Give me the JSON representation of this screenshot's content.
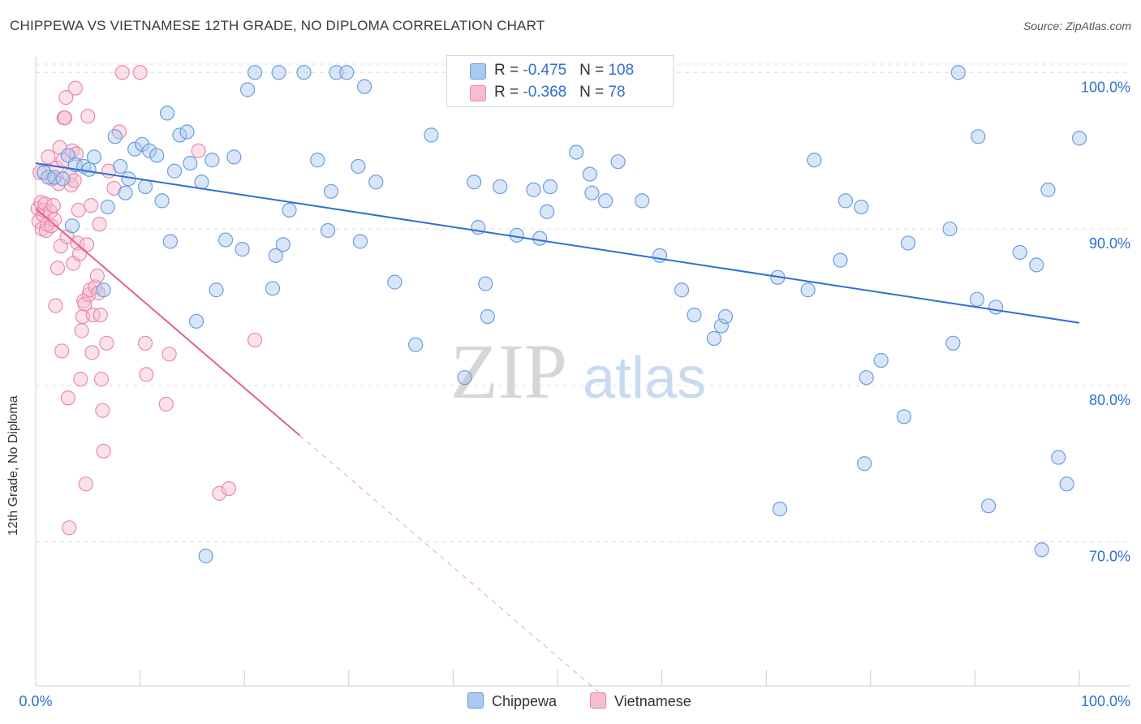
{
  "title": "CHIPPEWA VS VIETNAMESE 12TH GRADE, NO DIPLOMA CORRELATION CHART",
  "source": "Source: ZipAtlas.com",
  "watermark": {
    "zip": "ZIP",
    "atlas": "atlas"
  },
  "legend": {
    "rows": [
      {
        "r_label": "R = ",
        "r_value": "-0.475",
        "n_label": "N = ",
        "n_value": "108"
      },
      {
        "r_label": "R = ",
        "r_value": "-0.368",
        "n_label": "N = ",
        "n_value": "78"
      }
    ]
  },
  "colors": {
    "chippewa_fill": "#aac8f0",
    "chippewa_stroke": "#6b9ee0",
    "chippewa_line": "#2f6fd1",
    "vietnamese_fill": "#f6bcd0",
    "vietnamese_stroke": "#ea8aab",
    "vietnamese_line": "#e0608f",
    "axis_label": "#2f6fd1"
  },
  "chart_data": {
    "type": "scatter",
    "ylabel": "12th Grade, No Diploma",
    "xlim": [
      0,
      100
    ],
    "ylim": [
      60.8,
      101.0
    ],
    "x_tick_labels": [
      "0.0%",
      "100.0%"
    ],
    "y_ticks": [
      {
        "value": 70,
        "label": "70.0%"
      },
      {
        "value": 80,
        "label": "80.0%"
      },
      {
        "value": 90,
        "label": "90.0%"
      },
      {
        "value": 100,
        "label": "100.0%"
      }
    ],
    "grid": "horizontal dashed",
    "series": [
      {
        "name": "Chippewa",
        "trend": {
          "x": [
            0,
            100
          ],
          "y": [
            94.2,
            84.0
          ],
          "dashed_extension": false
        },
        "points": [
          [
            0.8,
            93.6
          ],
          [
            1.2,
            93.3
          ],
          [
            1.8,
            93.3
          ],
          [
            2.6,
            93.2
          ],
          [
            3.1,
            94.7
          ],
          [
            3.5,
            90.2
          ],
          [
            3.8,
            94.1
          ],
          [
            4.6,
            94.0
          ],
          [
            5.1,
            93.8
          ],
          [
            5.6,
            94.6
          ],
          [
            6.5,
            86.1
          ],
          [
            6.9,
            91.4
          ],
          [
            7.6,
            95.9
          ],
          [
            8.1,
            94.0
          ],
          [
            8.6,
            92.3
          ],
          [
            8.9,
            93.2
          ],
          [
            9.5,
            95.1
          ],
          [
            10.2,
            95.4
          ],
          [
            10.5,
            92.7
          ],
          [
            10.9,
            95.0
          ],
          [
            11.6,
            94.7
          ],
          [
            12.1,
            91.8
          ],
          [
            12.6,
            97.4
          ],
          [
            12.9,
            89.2
          ],
          [
            13.3,
            93.7
          ],
          [
            13.8,
            96.0
          ],
          [
            14.5,
            96.2
          ],
          [
            14.8,
            94.2
          ],
          [
            15.4,
            84.1
          ],
          [
            15.9,
            93.0
          ],
          [
            16.3,
            69.1
          ],
          [
            16.9,
            94.4
          ],
          [
            17.3,
            86.1
          ],
          [
            18.2,
            89.3
          ],
          [
            19.0,
            94.6
          ],
          [
            19.8,
            88.7
          ],
          [
            20.3,
            98.9
          ],
          [
            21.0,
            100.0
          ],
          [
            22.7,
            86.2
          ],
          [
            23.0,
            88.3
          ],
          [
            23.3,
            100.0
          ],
          [
            23.7,
            89.0
          ],
          [
            24.3,
            91.2
          ],
          [
            25.7,
            100.0
          ],
          [
            27.0,
            94.4
          ],
          [
            28.0,
            89.9
          ],
          [
            28.3,
            92.4
          ],
          [
            28.8,
            100.0
          ],
          [
            29.8,
            100.0
          ],
          [
            30.9,
            94.0
          ],
          [
            31.1,
            89.2
          ],
          [
            31.5,
            99.1
          ],
          [
            32.6,
            93.0
          ],
          [
            34.4,
            86.6
          ],
          [
            36.4,
            82.6
          ],
          [
            37.9,
            96.0
          ],
          [
            41.1,
            80.5
          ],
          [
            42.0,
            93.0
          ],
          [
            42.4,
            90.1
          ],
          [
            43.1,
            86.5
          ],
          [
            43.3,
            84.4
          ],
          [
            44.5,
            92.7
          ],
          [
            46.1,
            89.6
          ],
          [
            47.7,
            92.5
          ],
          [
            48.3,
            89.4
          ],
          [
            49.0,
            91.1
          ],
          [
            49.3,
            92.7
          ],
          [
            51.8,
            94.9
          ],
          [
            53.1,
            93.5
          ],
          [
            53.3,
            92.3
          ],
          [
            54.6,
            91.8
          ],
          [
            55.8,
            94.3
          ],
          [
            58.1,
            91.8
          ],
          [
            59.8,
            88.3
          ],
          [
            61.9,
            86.1
          ],
          [
            63.1,
            84.5
          ],
          [
            65.0,
            83.0
          ],
          [
            65.7,
            83.8
          ],
          [
            66.1,
            84.4
          ],
          [
            71.1,
            86.9
          ],
          [
            71.3,
            72.1
          ],
          [
            74.0,
            86.1
          ],
          [
            74.6,
            94.4
          ],
          [
            77.1,
            88.0
          ],
          [
            77.6,
            91.8
          ],
          [
            79.1,
            91.4
          ],
          [
            79.4,
            75.0
          ],
          [
            79.6,
            80.5
          ],
          [
            81.0,
            81.6
          ],
          [
            83.2,
            78.0
          ],
          [
            83.6,
            89.1
          ],
          [
            87.6,
            90.0
          ],
          [
            87.9,
            82.7
          ],
          [
            88.4,
            100.0
          ],
          [
            90.2,
            85.5
          ],
          [
            90.3,
            95.9
          ],
          [
            91.3,
            72.3
          ],
          [
            92.0,
            85.0
          ],
          [
            94.3,
            88.5
          ],
          [
            95.9,
            87.7
          ],
          [
            96.4,
            69.5
          ],
          [
            97.0,
            92.5
          ],
          [
            98.0,
            75.4
          ],
          [
            98.8,
            73.7
          ],
          [
            100.0,
            95.8
          ]
        ]
      },
      {
        "name": "Vietnamese",
        "trend": {
          "x": [
            0,
            25.3
          ],
          "y": [
            91.3,
            76.8
          ],
          "dash_x": [
            25.3,
            55.0
          ],
          "dash_y": [
            76.8,
            59.8
          ]
        },
        "points": [
          [
            0.2,
            91.3
          ],
          [
            0.3,
            90.5
          ],
          [
            0.4,
            93.6
          ],
          [
            0.5,
            91.7
          ],
          [
            0.6,
            90.0
          ],
          [
            0.7,
            90.9
          ],
          [
            0.8,
            91.2
          ],
          [
            0.9,
            91.6
          ],
          [
            1.0,
            89.9
          ],
          [
            1.1,
            90.3
          ],
          [
            1.2,
            94.6
          ],
          [
            1.4,
            91.1
          ],
          [
            1.5,
            90.2
          ],
          [
            1.6,
            93.2
          ],
          [
            1.7,
            91.5
          ],
          [
            1.8,
            90.6
          ],
          [
            1.9,
            85.1
          ],
          [
            2.0,
            93.9
          ],
          [
            2.1,
            87.5
          ],
          [
            2.2,
            92.9
          ],
          [
            2.3,
            95.2
          ],
          [
            2.4,
            88.9
          ],
          [
            2.5,
            82.2
          ],
          [
            2.6,
            94.4
          ],
          [
            2.7,
            97.1
          ],
          [
            2.8,
            97.1
          ],
          [
            2.9,
            98.4
          ],
          [
            3.0,
            89.5
          ],
          [
            3.1,
            79.2
          ],
          [
            3.2,
            70.9
          ],
          [
            3.3,
            93.4
          ],
          [
            3.4,
            92.8
          ],
          [
            3.5,
            95.0
          ],
          [
            3.6,
            87.8
          ],
          [
            3.7,
            93.1
          ],
          [
            3.8,
            99.0
          ],
          [
            3.9,
            94.8
          ],
          [
            4.0,
            89.1
          ],
          [
            4.1,
            91.2
          ],
          [
            4.2,
            88.4
          ],
          [
            4.3,
            80.4
          ],
          [
            4.4,
            83.5
          ],
          [
            4.5,
            84.4
          ],
          [
            4.6,
            85.4
          ],
          [
            4.7,
            85.2
          ],
          [
            4.8,
            73.7
          ],
          [
            4.9,
            89.0
          ],
          [
            5.0,
            97.2
          ],
          [
            5.1,
            85.8
          ],
          [
            5.2,
            86.1
          ],
          [
            5.3,
            91.5
          ],
          [
            5.4,
            82.1
          ],
          [
            5.5,
            84.5
          ],
          [
            5.7,
            86.3
          ],
          [
            5.9,
            87.0
          ],
          [
            6.0,
            85.9
          ],
          [
            6.1,
            90.3
          ],
          [
            6.2,
            84.5
          ],
          [
            6.3,
            80.4
          ],
          [
            6.4,
            78.4
          ],
          [
            6.5,
            75.8
          ],
          [
            6.8,
            82.7
          ],
          [
            7.0,
            93.7
          ],
          [
            7.5,
            92.6
          ],
          [
            8.0,
            96.2
          ],
          [
            8.3,
            100.0
          ],
          [
            10.0,
            100.0
          ],
          [
            10.5,
            82.7
          ],
          [
            10.6,
            80.7
          ],
          [
            12.5,
            78.8
          ],
          [
            12.8,
            82.0
          ],
          [
            15.6,
            95.0
          ],
          [
            17.6,
            73.1
          ],
          [
            18.5,
            73.4
          ],
          [
            21.0,
            82.9
          ]
        ]
      }
    ]
  }
}
